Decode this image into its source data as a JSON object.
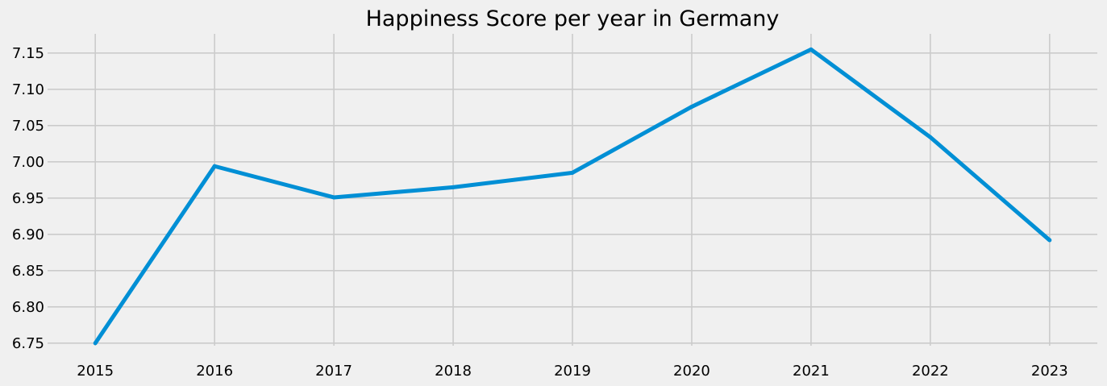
{
  "chart_data": {
    "type": "line",
    "title": "Happiness Score per year in Germany",
    "xlabel": "",
    "ylabel": "",
    "x": [
      2015,
      2016,
      2017,
      2018,
      2019,
      2020,
      2021,
      2022,
      2023
    ],
    "series": [
      {
        "values": [
          6.75,
          6.994,
          6.951,
          6.965,
          6.985,
          7.076,
          7.155,
          7.034,
          6.892
        ],
        "color": "#008fd5"
      }
    ],
    "xlim": [
      2014.6,
      2023.4
    ],
    "ylim": [
      6.7465,
      7.1765
    ],
    "x_ticks": [
      "2015",
      "2016",
      "2017",
      "2018",
      "2019",
      "2020",
      "2021",
      "2022",
      "2023"
    ],
    "y_ticks": [
      "6.75",
      "6.80",
      "6.85",
      "6.90",
      "6.95",
      "7.00",
      "7.05",
      "7.10",
      "7.15"
    ],
    "grid": true,
    "legend": "none",
    "style": "fivethirtyeight"
  }
}
